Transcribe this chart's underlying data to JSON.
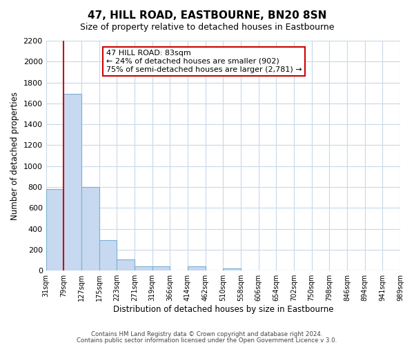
{
  "title": "47, HILL ROAD, EASTBOURNE, BN20 8SN",
  "subtitle": "Size of property relative to detached houses in Eastbourne",
  "xlabel": "Distribution of detached houses by size in Eastbourne",
  "ylabel": "Number of detached properties",
  "bin_labels": [
    "31sqm",
    "79sqm",
    "127sqm",
    "175sqm",
    "223sqm",
    "271sqm",
    "319sqm",
    "366sqm",
    "414sqm",
    "462sqm",
    "510sqm",
    "558sqm",
    "606sqm",
    "654sqm",
    "702sqm",
    "750sqm",
    "798sqm",
    "846sqm",
    "894sqm",
    "941sqm",
    "989sqm"
  ],
  "bar_heights": [
    780,
    1690,
    800,
    295,
    110,
    38,
    38,
    0,
    38,
    0,
    20,
    0,
    0,
    0,
    0,
    0,
    0,
    0,
    0,
    0
  ],
  "bar_color": "#c6d9f0",
  "bar_edge_color": "#7bafd4",
  "annotation_title": "47 HILL ROAD: 83sqm",
  "annotation_line1": "← 24% of detached houses are smaller (902)",
  "annotation_line2": "75% of semi-detached houses are larger (2,781) →",
  "annotation_box_color": "#ffffff",
  "annotation_box_edge": "#cc0000",
  "property_line_color": "#cc0000",
  "ylim": [
    0,
    2200
  ],
  "yticks": [
    0,
    200,
    400,
    600,
    800,
    1000,
    1200,
    1400,
    1600,
    1800,
    2000,
    2200
  ],
  "footer1": "Contains HM Land Registry data © Crown copyright and database right 2024.",
  "footer2": "Contains public sector information licensed under the Open Government Licence v 3.0.",
  "background_color": "#ffffff",
  "grid_color": "#c8d8e8"
}
